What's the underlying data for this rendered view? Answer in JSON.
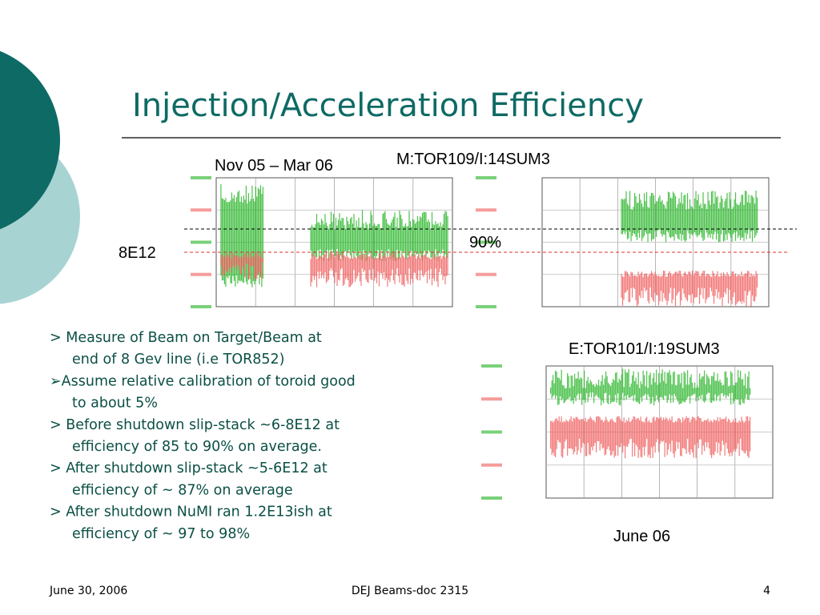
{
  "title": "Injection/Acceleration Efficiency",
  "labels": {
    "period": "Nov 05 – Mar 06",
    "device_top": "M:TOR109/I:14SUM3",
    "intensity": "8E12",
    "efficiency": "90%",
    "device_bottom": "E:TOR101/I:19SUM3",
    "period_bottom": "June 06"
  },
  "bullets": [
    [
      "> Measure of Beam on Target/Beam at",
      "end of 8 Gev line (i.e TOR852)"
    ],
    [
      "➢Assume relative calibration of toroid good",
      "to  about 5%"
    ],
    [
      "> Before shutdown slip-stack ~6-8E12 at",
      "efficiency of 85 to 90% on average."
    ],
    [
      "> After shutdown slip-stack ~5-6E12 at",
      "efficiency of ~ 87% on average"
    ],
    [
      "> After shutdown NuMI ran 1.2E13ish at",
      "efficiency of ~ 97 to 98%"
    ]
  ],
  "footer": {
    "date": "June 30, 2006",
    "doc": "DEJ Beams-doc 2315",
    "page": "4"
  }
}
